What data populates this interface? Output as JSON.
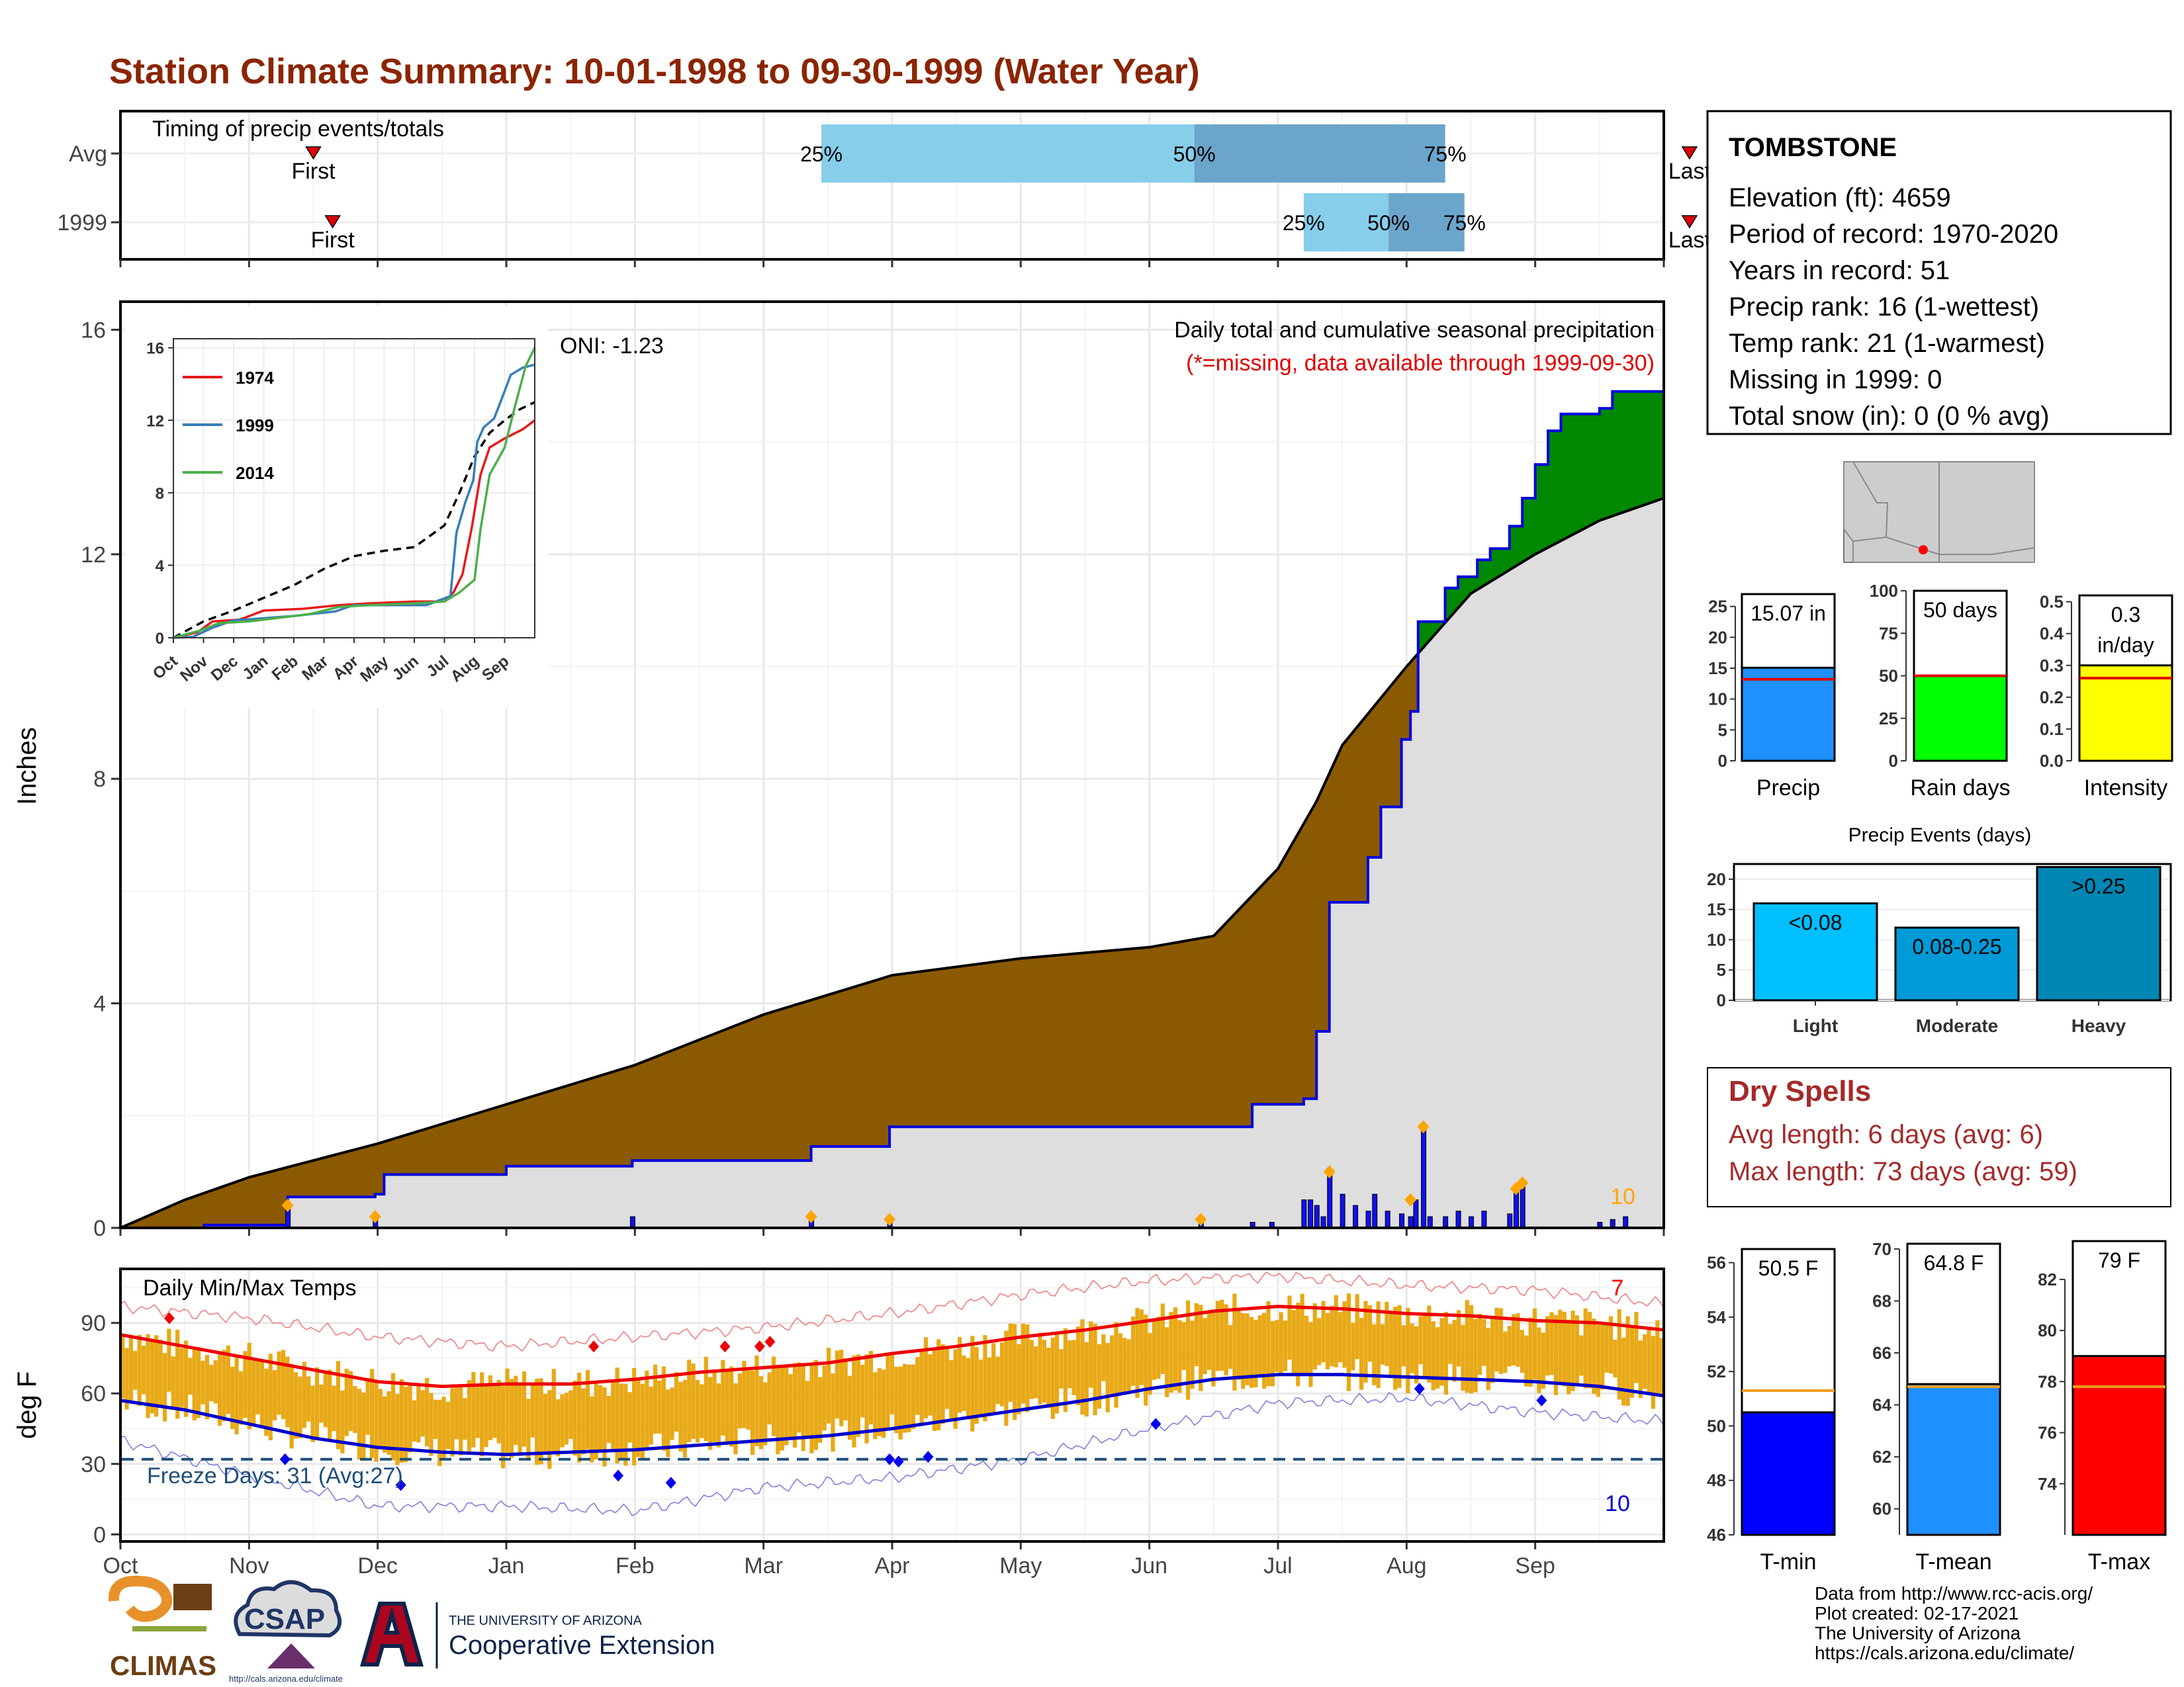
{
  "title": "Station Climate Summary: 10-01-1998 to 09-30-1999 (Water Year)",
  "colors": {
    "title": "#8b2500",
    "precip_avg_fill": "#8b5a00",
    "precip_obs_fill": "#008800",
    "precip_base_fill": "#dedede",
    "precip_daily_bar": "#1010ee",
    "precip_marker": "#ffa500",
    "temp_range_bar": "#e8a917",
    "tmax_line": "#ee0000",
    "tmin_line": "#0000cc",
    "freeze_line": "#1f4e79",
    "dry_spell_text": "#a52a2a",
    "missing_note": "#e00000",
    "q_light": "#87ceeb",
    "q_dark": "#6ca5cb"
  },
  "timing": {
    "title": "Timing of precip events/totals",
    "rows": [
      {
        "label": "Avg",
        "first_label": "First",
        "last_label": "Last",
        "first_month": 1.5,
        "last_month": 12.2,
        "q25": 5.45,
        "q50": 8.35,
        "q75": 10.3,
        "q25_label": "25%",
        "q50_label": "50%",
        "q75_label": "75%"
      },
      {
        "label": "1999",
        "first_label": "First",
        "last_label": "Last",
        "first_month": 1.65,
        "last_month": 12.2,
        "q25": 9.2,
        "q50": 9.86,
        "q75": 10.45,
        "q25_label": "25%",
        "q50_label": "50%",
        "q75_label": "75%"
      }
    ]
  },
  "chart_data": [
    {
      "type": "area",
      "title": "Daily total and cumulative seasonal precipitation",
      "subtitle": "(*=missing, data available through 1999-09-30)",
      "ylabel": "Inches",
      "ylim": [
        0,
        16.5
      ],
      "yticks": [
        0,
        4,
        8,
        12,
        16
      ],
      "oni_label": "ONI: -1.23",
      "count_label": "10",
      "x_unit": "water-year month (0 = Oct 1)",
      "avg_cumulative": {
        "x": [
          0,
          0.5,
          1,
          2,
          3,
          4,
          5,
          6,
          7,
          8,
          8.5,
          9,
          9.3,
          9.5,
          9.75,
          10,
          10.5,
          11,
          11.5,
          12
        ],
        "y": [
          0,
          0.5,
          0.9,
          1.5,
          2.2,
          2.9,
          3.8,
          4.5,
          4.8,
          5.0,
          5.2,
          6.4,
          7.6,
          8.6,
          9.3,
          10.0,
          11.3,
          12.0,
          12.6,
          13.0
        ]
      },
      "obs_cumulative": {
        "x": [
          0,
          0.65,
          1,
          1.3,
          1.98,
          2.05,
          3,
          3.98,
          5.37,
          5.98,
          8.4,
          8.8,
          9.2,
          9.3,
          9.4,
          9.7,
          9.8,
          9.96,
          10.03,
          10.09,
          10.3,
          10.4,
          10.55,
          10.65,
          10.8,
          10.9,
          11.0,
          11.1,
          11.2,
          11.5,
          11.6,
          12
        ],
        "y": [
          0,
          0.05,
          0.05,
          0.55,
          0.6,
          0.95,
          1.1,
          1.2,
          1.45,
          1.8,
          1.8,
          2.2,
          2.3,
          3.5,
          5.8,
          6.6,
          7.5,
          8.7,
          9.2,
          10.8,
          11.4,
          11.6,
          11.9,
          12.1,
          12.5,
          13.0,
          13.6,
          14.2,
          14.5,
          14.6,
          14.9,
          15.07
        ]
      },
      "daily_bars": {
        "x": [
          1.3,
          1.98,
          3.98,
          5.37,
          5.98,
          8.4,
          8.8,
          8.95,
          9.2,
          9.25,
          9.3,
          9.35,
          9.4,
          9.5,
          9.6,
          9.7,
          9.75,
          9.85,
          9.96,
          10.03,
          10.07,
          10.13,
          10.18,
          10.3,
          10.4,
          10.5,
          10.6,
          10.8,
          10.85,
          10.9,
          11.5,
          11.6,
          11.7
        ],
        "y": [
          0.4,
          0.2,
          0.2,
          0.2,
          0.15,
          0.15,
          0.1,
          0.1,
          0.5,
          0.5,
          0.4,
          0.2,
          1.0,
          0.6,
          0.4,
          0.3,
          0.6,
          0.3,
          0.25,
          0.2,
          0.5,
          1.8,
          0.2,
          0.2,
          0.3,
          0.2,
          0.3,
          0.25,
          0.7,
          0.8,
          0.1,
          0.15,
          0.2
        ]
      },
      "markers": {
        "x": [
          1.3,
          1.98,
          5.37,
          5.98,
          8.4,
          9.4,
          10.03,
          10.13,
          10.85,
          10.9
        ],
        "y": [
          0.4,
          0.2,
          0.2,
          0.15,
          0.15,
          1.0,
          0.5,
          1.8,
          0.7,
          0.8
        ]
      },
      "inset": {
        "type": "line",
        "ylim": [
          0,
          16.5
        ],
        "yticks": [
          0,
          4,
          8,
          12,
          16
        ],
        "months": [
          "Oct",
          "Nov",
          "Dec",
          "Jan",
          "Feb",
          "Mar",
          "Apr",
          "May",
          "Jun",
          "Jul",
          "Aug",
          "Sep"
        ],
        "avg": {
          "x": [
            0,
            1,
            2,
            3,
            4,
            5,
            6,
            7,
            8,
            9,
            9.5,
            10,
            10.5,
            11,
            11.5,
            12
          ],
          "y": [
            0,
            0.9,
            1.5,
            2.2,
            2.9,
            3.8,
            4.5,
            4.8,
            5.0,
            6.2,
            8.0,
            10.0,
            11.3,
            12.0,
            12.6,
            13.0
          ]
        },
        "series": [
          {
            "name": "1974",
            "color": "#e41a1c",
            "x": [
              0,
              0.8,
              1.3,
              2.2,
              3.0,
              4.3,
              5.5,
              6.5,
              8.0,
              9.0,
              9.3,
              9.6,
              9.9,
              10.2,
              10.5,
              11.0,
              11.6,
              12
            ],
            "y": [
              0,
              0.3,
              0.9,
              1.0,
              1.5,
              1.6,
              1.8,
              1.9,
              2.0,
              2.0,
              2.5,
              3.5,
              6.0,
              9.0,
              10.5,
              11.0,
              11.5,
              12.0
            ]
          },
          {
            "name": "1999",
            "color": "#377eb8",
            "x": [
              0,
              0.65,
              1.3,
              1.98,
              3.98,
              5.37,
              5.98,
              8.4,
              9.2,
              9.4,
              9.7,
              9.96,
              10.09,
              10.3,
              10.65,
              11.0,
              11.2,
              11.6,
              12
            ],
            "y": [
              0,
              0.05,
              0.55,
              0.95,
              1.2,
              1.45,
              1.8,
              1.8,
              2.3,
              5.8,
              7.5,
              8.7,
              10.8,
              11.6,
              12.1,
              13.6,
              14.5,
              14.9,
              15.07
            ]
          },
          {
            "name": "2014",
            "color": "#4daf4a",
            "x": [
              0,
              0.9,
              1.5,
              2.5,
              3.5,
              4.5,
              5.5,
              6.5,
              8.0,
              9.0,
              9.5,
              10.0,
              10.2,
              10.5,
              11.0,
              11.3,
              11.7,
              12
            ],
            "y": [
              0,
              0.4,
              0.8,
              0.9,
              1.1,
              1.3,
              1.7,
              1.8,
              1.9,
              2.0,
              2.5,
              3.2,
              6.0,
              9.0,
              10.5,
              12.5,
              15.0,
              16.0
            ]
          }
        ]
      }
    },
    {
      "type": "bar",
      "title": "Daily Min/Max Temps",
      "ylabel": "deg F",
      "ylim": [
        -3,
        113
      ],
      "yticks": [
        0,
        30,
        60,
        90
      ],
      "xlabels": [
        "Oct",
        "Nov",
        "Dec",
        "Jan",
        "Feb",
        "Mar",
        "Apr",
        "May",
        "Jun",
        "Jul",
        "Aug",
        "Sep"
      ],
      "freeze_label": "Freeze Days: 31 (Avg:27)",
      "freeze_threshold": 32,
      "max_count_label": "7",
      "min_count_label": "10",
      "tmax_avg": {
        "x": [
          0,
          0.5,
          1,
          1.5,
          2,
          2.5,
          3,
          3.5,
          4,
          4.5,
          5,
          5.5,
          6,
          6.5,
          7,
          7.5,
          8,
          8.5,
          9,
          9.5,
          10,
          10.5,
          11,
          11.5,
          12
        ],
        "y": [
          85,
          80,
          75,
          70,
          65,
          63,
          64,
          64,
          66,
          69,
          71,
          73,
          77,
          80,
          84,
          87,
          91,
          95,
          97,
          96,
          94,
          93,
          91,
          90,
          87
        ]
      },
      "tmin_avg": {
        "x": [
          0,
          0.5,
          1,
          1.5,
          2,
          2.5,
          3,
          3.5,
          4,
          4.5,
          5,
          5.5,
          6,
          6.5,
          7,
          7.5,
          8,
          8.5,
          9,
          9.5,
          10,
          10.5,
          11,
          11.5,
          12
        ],
        "y": [
          57,
          53,
          47,
          41,
          37,
          35,
          34,
          35,
          36,
          38,
          40,
          42,
          45,
          49,
          53,
          57,
          62,
          66,
          68,
          68,
          67,
          66,
          65,
          63,
          59
        ]
      },
      "tmax_record": {
        "x": [
          0,
          1,
          2,
          3,
          4,
          5,
          6,
          7,
          8,
          9,
          10,
          11,
          12
        ],
        "y": [
          97,
          92,
          84,
          80,
          84,
          88,
          94,
          102,
          108,
          110,
          106,
          104,
          98
        ]
      },
      "tmin_record": {
        "x": [
          0,
          1,
          2,
          3,
          4,
          5,
          6,
          7,
          8,
          9,
          10,
          11,
          12
        ],
        "y": [
          40,
          25,
          12,
          12,
          10,
          20,
          24,
          32,
          45,
          56,
          58,
          52,
          48
        ]
      },
      "record_high_markers": {
        "x": [
          0.38,
          3.68,
          4.7,
          4.97,
          5.05
        ],
        "y": [
          92,
          80,
          80,
          80,
          82
        ]
      },
      "record_low_markers": {
        "x": [
          1.28,
          2.18,
          3.87,
          4.28,
          5.98,
          6.05,
          6.28,
          8.05,
          10.1,
          11.05
        ],
        "y": [
          32,
          21,
          25,
          22,
          32,
          31,
          33,
          47,
          62,
          57
        ]
      }
    },
    {
      "type": "bar",
      "title": "Precip / Rain days / Intensity",
      "panels": [
        {
          "label": "Precip",
          "value_label": "15.07 in",
          "value": 15.07,
          "avg": 13.2,
          "ylim": [
            0,
            27
          ],
          "yticks": [
            0,
            5,
            10,
            15,
            20,
            25
          ],
          "color": "#1e90ff"
        },
        {
          "label": "Rain days",
          "value_label": "50 days",
          "value": 50,
          "avg": 50,
          "ylim": [
            0,
            100
          ],
          "yticks": [
            0,
            25,
            50,
            75,
            100
          ],
          "color": "#00ff00"
        },
        {
          "label": "Intensity",
          "value_label": "0.3",
          "value_label_2": "in/day",
          "value": 0.3,
          "avg": 0.26,
          "ylim": [
            0,
            0.52
          ],
          "yticks": [
            0.0,
            0.1,
            0.2,
            0.3,
            0.4,
            0.5
          ],
          "tick_labels": [
            "0.0",
            "0.1",
            "0.2",
            "0.3",
            "0.4",
            "0.5"
          ],
          "color": "#ffff00"
        }
      ]
    },
    {
      "type": "bar",
      "title": "Precip Events (days)",
      "categories": [
        "Light",
        "Moderate",
        "Heavy"
      ],
      "bar_labels": [
        "<0.08",
        "0.08-0.25",
        ">0.25"
      ],
      "values": [
        16,
        12,
        22
      ],
      "ylim": [
        0,
        22.5
      ],
      "yticks": [
        0,
        5,
        10,
        15,
        20
      ],
      "colors": [
        "#00bfff",
        "#009ad6",
        "#0086b3"
      ]
    },
    {
      "type": "bar",
      "title": "T-min / T-mean / T-max",
      "panels": [
        {
          "label": "T-min",
          "value_label": "50.5 F",
          "value": 50.5,
          "avg": 51.3,
          "ylim": [
            46,
            56.5
          ],
          "yticks": [
            46,
            48,
            50,
            52,
            54,
            56
          ],
          "color": "#0000ff"
        },
        {
          "label": "T-mean",
          "value_label": "64.8 F",
          "value": 64.8,
          "avg": 64.7,
          "ylim": [
            59,
            70.2
          ],
          "yticks": [
            60,
            62,
            64,
            66,
            68,
            70
          ],
          "color": "#1e90ff"
        },
        {
          "label": "T-max",
          "value_label": "79 F",
          "value": 79,
          "avg": 77.8,
          "ylim": [
            72,
            83.5
          ],
          "yticks": [
            74,
            76,
            78,
            80,
            82
          ],
          "color": "#ff0000"
        }
      ]
    }
  ],
  "station": {
    "name": "TOMBSTONE",
    "lines": [
      "Elevation (ft): 4659",
      "Period of record: 1970-2020",
      "Years in record: 51",
      "Precip rank: 16 (1-wettest)",
      "Temp rank: 21 (1-warmest)",
      "Missing in 1999: 0",
      "Total snow (in): 0 (0 % avg)"
    ]
  },
  "dry_spells": {
    "title": "Dry Spells",
    "avg_line": "Avg length: 6 days (avg: 6)",
    "max_line": "Max length: 73 days (avg: 59)"
  },
  "credits": [
    "Data from http://www.rcc-acis.org/",
    "Plot created: 02-17-2021",
    "The University of Arizona",
    "https://cals.arizona.edu/climate/"
  ],
  "logos": {
    "climas": "CLIMAS",
    "csap": "CSAP",
    "csap_url": "http://cals.arizona.edu/climate",
    "ua_line1": "THE UNIVERSITY OF ARIZONA",
    "ua_line2": "Cooperative Extension"
  }
}
